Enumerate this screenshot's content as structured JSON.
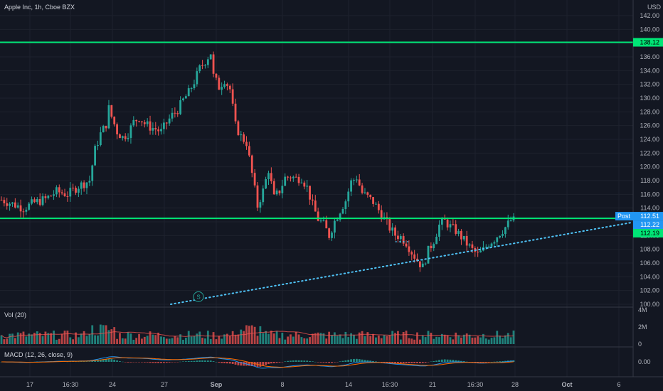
{
  "header": {
    "symbol_title": "Apple Inc, 1h, Cboe BZX",
    "currency": "USD"
  },
  "volume_panel": {
    "title": "Vol (20)"
  },
  "macd_panel": {
    "title": "MACD (12, 26, close, 9)"
  },
  "colors": {
    "background": "#131722",
    "grid": "#1e222d",
    "up": "#26a69a",
    "down": "#ef5350",
    "support_line": "#00e676",
    "trendline": "#4fc3f7",
    "post_badge": "#2196f3"
  },
  "chart_data": [
    {
      "type": "candlestick",
      "series_name": "Apple Inc, 1h, Cboe BZX",
      "y_axis": {
        "unit": "USD",
        "range": [
          100,
          142
        ],
        "ticks": [
          "100.00",
          "102.00",
          "104.00",
          "106.00",
          "108.00",
          "110.00",
          "112.00",
          "114.00",
          "116.00",
          "118.00",
          "120.00",
          "122.00",
          "124.00",
          "126.00",
          "128.00",
          "130.00",
          "132.00",
          "134.00",
          "136.00",
          "138.00",
          "140.00",
          "142.00"
        ]
      },
      "x_axis": {
        "tick_labels": [
          "17",
          "16:30",
          "24",
          "27",
          "Sep",
          "8",
          "14",
          "16:30",
          "21",
          "16:30",
          "28",
          "Oct",
          "6"
        ]
      },
      "horizontal_lines": [
        {
          "price": 138.12,
          "label": "138.12",
          "color": "#00e676"
        },
        {
          "price": 112.51,
          "label": "112.51",
          "color": "#00e676"
        }
      ],
      "trendline": {
        "from_price": 100.0,
        "to_price": 111.9,
        "style": "dotted",
        "marker_label": "S"
      },
      "price_labels": [
        {
          "label": "Post",
          "value": "112.51",
          "color": "#2196f3"
        },
        {
          "label": "",
          "value": "112.22",
          "color": "#2196f3"
        },
        {
          "label": "",
          "value": "112.19",
          "color": "#00e676"
        }
      ],
      "close_path": [
        [
          0,
          115.2
        ],
        [
          4,
          114.6
        ],
        [
          8,
          114.0
        ],
        [
          12,
          114.8
        ],
        [
          16,
          115.3
        ],
        [
          20,
          116.4
        ],
        [
          24,
          116.0
        ],
        [
          28,
          117.2
        ],
        [
          32,
          118.0
        ],
        [
          34,
          122.5
        ],
        [
          36,
          124.8
        ],
        [
          38,
          126.2
        ],
        [
          39,
          128.5
        ],
        [
          40,
          127.3
        ],
        [
          42,
          125.1
        ],
        [
          44,
          124.3
        ],
        [
          46,
          124.9
        ],
        [
          48,
          126.5
        ],
        [
          50,
          127.2
        ],
        [
          52,
          126.3
        ],
        [
          54,
          125.8
        ],
        [
          56,
          125.5
        ],
        [
          58,
          125.1
        ],
        [
          60,
          126.4
        ],
        [
          62,
          127.5
        ],
        [
          64,
          128.3
        ],
        [
          66,
          129.7
        ],
        [
          68,
          130.8
        ],
        [
          70,
          132.4
        ],
        [
          72,
          134.3
        ],
        [
          74,
          135.4
        ],
        [
          76,
          136.6
        ],
        [
          77,
          133.2
        ],
        [
          79,
          131.6
        ],
        [
          81,
          132.7
        ],
        [
          83,
          131.3
        ],
        [
          85,
          126.0
        ],
        [
          87,
          124.4
        ],
        [
          89,
          123.5
        ],
        [
          91,
          119.0
        ],
        [
          93,
          114.3
        ],
        [
          95,
          116.5
        ],
        [
          97,
          119.6
        ],
        [
          99,
          115.5
        ],
        [
          101,
          116.5
        ],
        [
          103,
          118.4
        ],
        [
          105,
          118.6
        ],
        [
          107,
          118.3
        ],
        [
          109,
          118.4
        ],
        [
          111,
          117.0
        ],
        [
          113,
          114.4
        ],
        [
          115,
          112.4
        ],
        [
          117,
          111.6
        ],
        [
          119,
          110.0
        ],
        [
          121,
          112.1
        ],
        [
          123,
          113.7
        ],
        [
          125,
          115.1
        ],
        [
          127,
          117.8
        ],
        [
          129,
          118.5
        ],
        [
          131,
          116.2
        ],
        [
          133,
          115.6
        ],
        [
          135,
          114.9
        ],
        [
          137,
          113.7
        ],
        [
          139,
          112.4
        ],
        [
          141,
          111.1
        ],
        [
          143,
          110.1
        ],
        [
          145,
          109.8
        ],
        [
          147,
          109.0
        ],
        [
          149,
          107.6
        ],
        [
          151,
          106.4
        ],
        [
          153,
          105.4
        ],
        [
          155,
          107.8
        ],
        [
          157,
          109.3
        ],
        [
          159,
          111.5
        ],
        [
          161,
          112.1
        ],
        [
          163,
          111.3
        ],
        [
          165,
          110.7
        ],
        [
          167,
          109.8
        ],
        [
          169,
          108.8
        ],
        [
          171,
          107.9
        ],
        [
          173,
          107.2
        ],
        [
          175,
          107.9
        ],
        [
          177,
          108.9
        ],
        [
          179,
          109.5
        ],
        [
          181,
          110.4
        ],
        [
          183,
          111.2
        ],
        [
          185,
          112.2
        ]
      ],
      "candle_count": 187
    },
    {
      "type": "bar",
      "series_name": "Vol (20)",
      "y_axis": {
        "ticks": [
          "0",
          "2M",
          "4M"
        ],
        "range": [
          0,
          4000000
        ]
      }
    },
    {
      "type": "line",
      "series_name": "MACD (12, 26, close, 9)",
      "y_axis": {
        "ticks": [
          "0.00"
        ]
      }
    }
  ]
}
